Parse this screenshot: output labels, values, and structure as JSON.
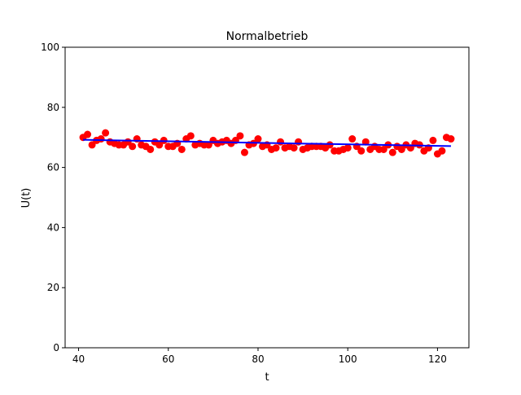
{
  "chart_data": {
    "type": "scatter",
    "title": "Normalbetrieb",
    "xlabel": "t",
    "ylabel": "U(t)",
    "xlim": [
      37,
      127
    ],
    "ylim": [
      0,
      100
    ],
    "xticks": [
      "40",
      "60",
      "80",
      "100",
      "120"
    ],
    "yticks": [
      "0",
      "20",
      "40",
      "60",
      "80",
      "100"
    ],
    "grid": false,
    "colors": {
      "points": "#ff0000",
      "fit_line": "#0000ff"
    },
    "series": [
      {
        "type": "scatter",
        "x": [
          41,
          42,
          43,
          44,
          45,
          46,
          47,
          48,
          49,
          50,
          51,
          52,
          53,
          54,
          55,
          56,
          57,
          58,
          59,
          60,
          61,
          62,
          63,
          64,
          65,
          66,
          67,
          68,
          69,
          70,
          71,
          72,
          73,
          74,
          75,
          76,
          77,
          78,
          79,
          80,
          81,
          82,
          83,
          84,
          85,
          86,
          87,
          88,
          89,
          90,
          91,
          92,
          93,
          94,
          95,
          96,
          97,
          98,
          99,
          100,
          101,
          102,
          103,
          104,
          105,
          106,
          107,
          108,
          109,
          110,
          111,
          112,
          113,
          114,
          115,
          116,
          117,
          118,
          119,
          120,
          121,
          122,
          123
        ],
        "y": [
          70.0,
          71.0,
          67.5,
          69.0,
          69.5,
          71.5,
          68.5,
          68.0,
          67.5,
          67.5,
          68.5,
          67.0,
          69.5,
          67.5,
          67.0,
          66.0,
          68.5,
          67.5,
          69.0,
          67.0,
          67.0,
          68.0,
          66.0,
          69.5,
          70.5,
          67.5,
          68.0,
          67.5,
          67.5,
          69.0,
          68.0,
          68.5,
          69.0,
          68.0,
          69.0,
          70.5,
          65.0,
          67.5,
          68.0,
          69.5,
          67.0,
          67.5,
          66.0,
          66.5,
          68.5,
          66.5,
          67.0,
          66.5,
          68.5,
          66.0,
          66.5,
          67.0,
          67.0,
          67.0,
          66.5,
          67.5,
          65.5,
          65.5,
          66.0,
          66.5,
          69.5,
          67.0,
          65.5,
          68.5,
          66.0,
          67.0,
          66.0,
          66.0,
          67.5,
          65.0,
          67.0,
          66.0,
          67.5,
          66.5,
          68.0,
          67.5,
          65.5,
          66.5,
          69.0,
          64.5,
          65.5,
          70.0,
          69.5
        ]
      },
      {
        "type": "line",
        "x": [
          41,
          123
        ],
        "y": [
          69.2,
          67.1
        ]
      }
    ]
  }
}
